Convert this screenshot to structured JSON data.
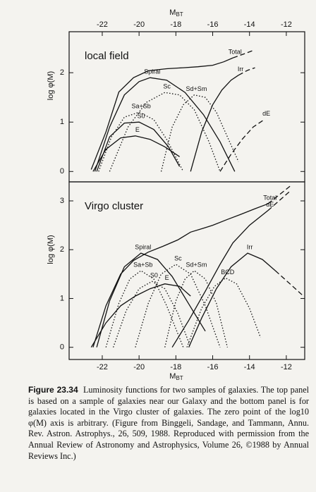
{
  "chart_data": [
    {
      "type": "line",
      "annotation": "local field",
      "xlabel": "MBT",
      "ylabel": "log φ(M)",
      "xlim": [
        -23.8,
        -11
      ],
      "xticks": [
        -22,
        -20,
        -18,
        -16,
        -14,
        -12
      ],
      "ylim": [
        -0.21,
        2.83
      ],
      "yticks": [
        0,
        1,
        2
      ],
      "series": [
        {
          "name": "Total",
          "style": "solid",
          "x": [
            -22.6,
            -21.8,
            -21.1,
            -20.3,
            -19.5,
            -18.5,
            -17.6,
            -16.8,
            -16,
            -15.4,
            -14.9
          ],
          "values": [
            0.04,
            0.8,
            1.61,
            1.9,
            2.04,
            2.08,
            2.1,
            2.12,
            2.15,
            2.22,
            2.3
          ]
        },
        {
          "style": "dashed",
          "x": [
            -14.9,
            -14.3,
            -13.8
          ],
          "values": [
            2.3,
            2.38,
            2.45
          ]
        },
        {
          "name": "Spiral",
          "style": "solid",
          "x": [
            -22.4,
            -21.6,
            -20.8,
            -20,
            -19.4,
            -18.5,
            -17.5,
            -16.5,
            -15.6,
            -14.8
          ],
          "values": [
            0,
            0.9,
            1.55,
            1.82,
            1.9,
            1.85,
            1.6,
            1.15,
            0.6,
            0
          ]
        },
        {
          "name": "Sc",
          "style": "dotted",
          "x": [
            -21.6,
            -20.6,
            -19.6,
            -18.6,
            -17.8,
            -17,
            -16.2,
            -15.6
          ],
          "values": [
            0,
            0.9,
            1.4,
            1.6,
            1.55,
            1.25,
            0.6,
            0
          ]
        },
        {
          "name": "Sa+Sb",
          "style": "dotted",
          "x": [
            -22.2,
            -21.5,
            -20.8,
            -20,
            -19.2,
            -18.5,
            -17.6
          ],
          "values": [
            0,
            0.7,
            1.1,
            1.2,
            1.05,
            0.65,
            0
          ]
        },
        {
          "name": "Sd+Sm",
          "style": "dotted",
          "x": [
            -18.8,
            -18.2,
            -17.6,
            -17,
            -16.4,
            -15.8,
            -15.2,
            -14.6
          ],
          "values": [
            0,
            0.9,
            1.35,
            1.55,
            1.5,
            1.2,
            0.7,
            0.2
          ]
        },
        {
          "name": "S0",
          "style": "solid",
          "x": [
            -22.3,
            -21.6,
            -20.8,
            -20,
            -19.2,
            -18.4,
            -17.8
          ],
          "values": [
            0,
            0.7,
            0.98,
            1.0,
            0.85,
            0.5,
            0.1
          ]
        },
        {
          "name": "E",
          "style": "solid",
          "x": [
            -22.5,
            -21.8,
            -21,
            -20.2,
            -19.4,
            -18.6,
            -17.8
          ],
          "values": [
            0,
            0.45,
            0.68,
            0.72,
            0.65,
            0.5,
            0.3
          ]
        },
        {
          "name": "Irr",
          "style": "solid",
          "x": [
            -17.2,
            -16.6,
            -16,
            -15.5,
            -15,
            -14.6
          ],
          "values": [
            0,
            0.8,
            1.35,
            1.65,
            1.85,
            1.95
          ]
        },
        {
          "style": "dashed",
          "x": [
            -14.6,
            -14.1,
            -13.7
          ],
          "values": [
            1.95,
            2.05,
            2.1
          ]
        },
        {
          "name": "dE",
          "style": "dashed",
          "x": [
            -15.6,
            -15,
            -14.4,
            -13.8,
            -13.2
          ],
          "values": [
            0,
            0.35,
            0.65,
            0.9,
            1.05
          ]
        }
      ]
    },
    {
      "type": "line",
      "annotation": "Virgo cluster",
      "xlabel": "MBT",
      "ylabel": "log φ(M)",
      "xlim": [
        -23.8,
        -11
      ],
      "xticks": [
        -22,
        -20,
        -18,
        -16,
        -14,
        -12
      ],
      "ylim": [
        -0.25,
        3.39
      ],
      "yticks": [
        0,
        1,
        2,
        3
      ],
      "series": [
        {
          "name": "Total",
          "style": "solid",
          "x": [
            -22.5,
            -21.8,
            -21,
            -20.3,
            -19.5,
            -18.7,
            -17.9,
            -17.2,
            -16.5,
            -16,
            -15.2,
            -14.5,
            -13.7,
            -13
          ],
          "values": [
            0,
            0.85,
            1.5,
            1.78,
            1.95,
            2.07,
            2.2,
            2.36,
            2.44,
            2.5,
            2.62,
            2.72,
            2.84,
            2.94
          ]
        },
        {
          "style": "dashed",
          "x": [
            -13,
            -12.4,
            -11.8
          ],
          "values": [
            2.94,
            3.12,
            3.3
          ]
        },
        {
          "name": "Spiral",
          "style": "solid",
          "x": [
            -22.3,
            -21.6,
            -20.8,
            -19.9,
            -19,
            -18.2,
            -17.4,
            -16.4
          ],
          "values": [
            0,
            0.95,
            1.65,
            1.93,
            1.8,
            1.45,
            0.95,
            0.33
          ]
        },
        {
          "name": "Sc",
          "style": "dotted",
          "x": [
            -20.2,
            -19.5,
            -18.8,
            -18,
            -17.2,
            -16.4,
            -15.6
          ],
          "values": [
            0,
            0.9,
            1.5,
            1.7,
            1.5,
            0.85,
            0
          ]
        },
        {
          "name": "Sa+Sb",
          "style": "dotted",
          "x": [
            -21.8,
            -21.1,
            -20.5,
            -19.9,
            -19.2,
            -18.5,
            -17.6
          ],
          "values": [
            0,
            0.9,
            1.4,
            1.57,
            1.4,
            0.85,
            0
          ]
        },
        {
          "name": "S0",
          "style": "dotted",
          "x": [
            -21.4,
            -20.7,
            -20,
            -19.3,
            -18.6,
            -17.9,
            -17.2
          ],
          "values": [
            0,
            0.75,
            1.2,
            1.35,
            1.2,
            0.7,
            0
          ]
        },
        {
          "name": "E",
          "style": "solid",
          "x": [
            -22.6,
            -21.8,
            -21,
            -20.2,
            -19.4,
            -18.6,
            -17.8,
            -17.2
          ],
          "values": [
            0,
            0.5,
            0.85,
            1.05,
            1.2,
            1.3,
            1.25,
            1.05
          ]
        },
        {
          "name": "Sd+Sm",
          "style": "dotted",
          "x": [
            -18.6,
            -18,
            -17.5,
            -17,
            -16.4,
            -15.8,
            -15.2
          ],
          "values": [
            0,
            0.95,
            1.4,
            1.57,
            1.4,
            0.9,
            0
          ]
        },
        {
          "name": "BCD",
          "style": "dotted",
          "x": [
            -17.4,
            -16.6,
            -15.9,
            -15.3,
            -14.7,
            -14,
            -13.4
          ],
          "values": [
            0,
            0.8,
            1.25,
            1.42,
            1.3,
            0.8,
            0.2
          ]
        },
        {
          "name": "dE",
          "style": "solid",
          "x": [
            -18.2,
            -17.3,
            -16.4,
            -15.6,
            -14.9,
            -14,
            -13
          ],
          "values": [
            0,
            0.55,
            1.15,
            1.7,
            2.14,
            2.5,
            2.8
          ]
        },
        {
          "style": "dashed",
          "x": [
            -13,
            -12.4,
            -11.8
          ],
          "values": [
            2.8,
            3.0,
            3.2
          ]
        },
        {
          "name": "Irr",
          "style": "solid",
          "x": [
            -17.3,
            -16.6,
            -15.8,
            -15,
            -14.1,
            -13.3,
            -12.6
          ],
          "values": [
            0,
            0.6,
            1.2,
            1.65,
            1.93,
            1.8,
            1.57
          ]
        },
        {
          "style": "dashed",
          "x": [
            -12.6,
            -11.8,
            -11.1
          ],
          "values": [
            1.57,
            1.3,
            1.06
          ]
        }
      ]
    }
  ],
  "caption": {
    "label": "Figure 23.34",
    "text": "Luminosity functions for two samples of galaxies. The top panel is based on a sample of galaxies near our Galaxy and the bottom panel is for galaxies located in the Virgo cluster of galaxies. The zero point of the log10 φ(M) axis is arbitrary. (Figure from Binggeli, Sandage, and Tammann, Annu. Rev. Astron. Astrophys., 26, 509, 1988. Reproduced with permission from the Annual Review of Astronomy and Astrophysics, Volume 26, ©1988 by Annual Reviews Inc.)"
  }
}
